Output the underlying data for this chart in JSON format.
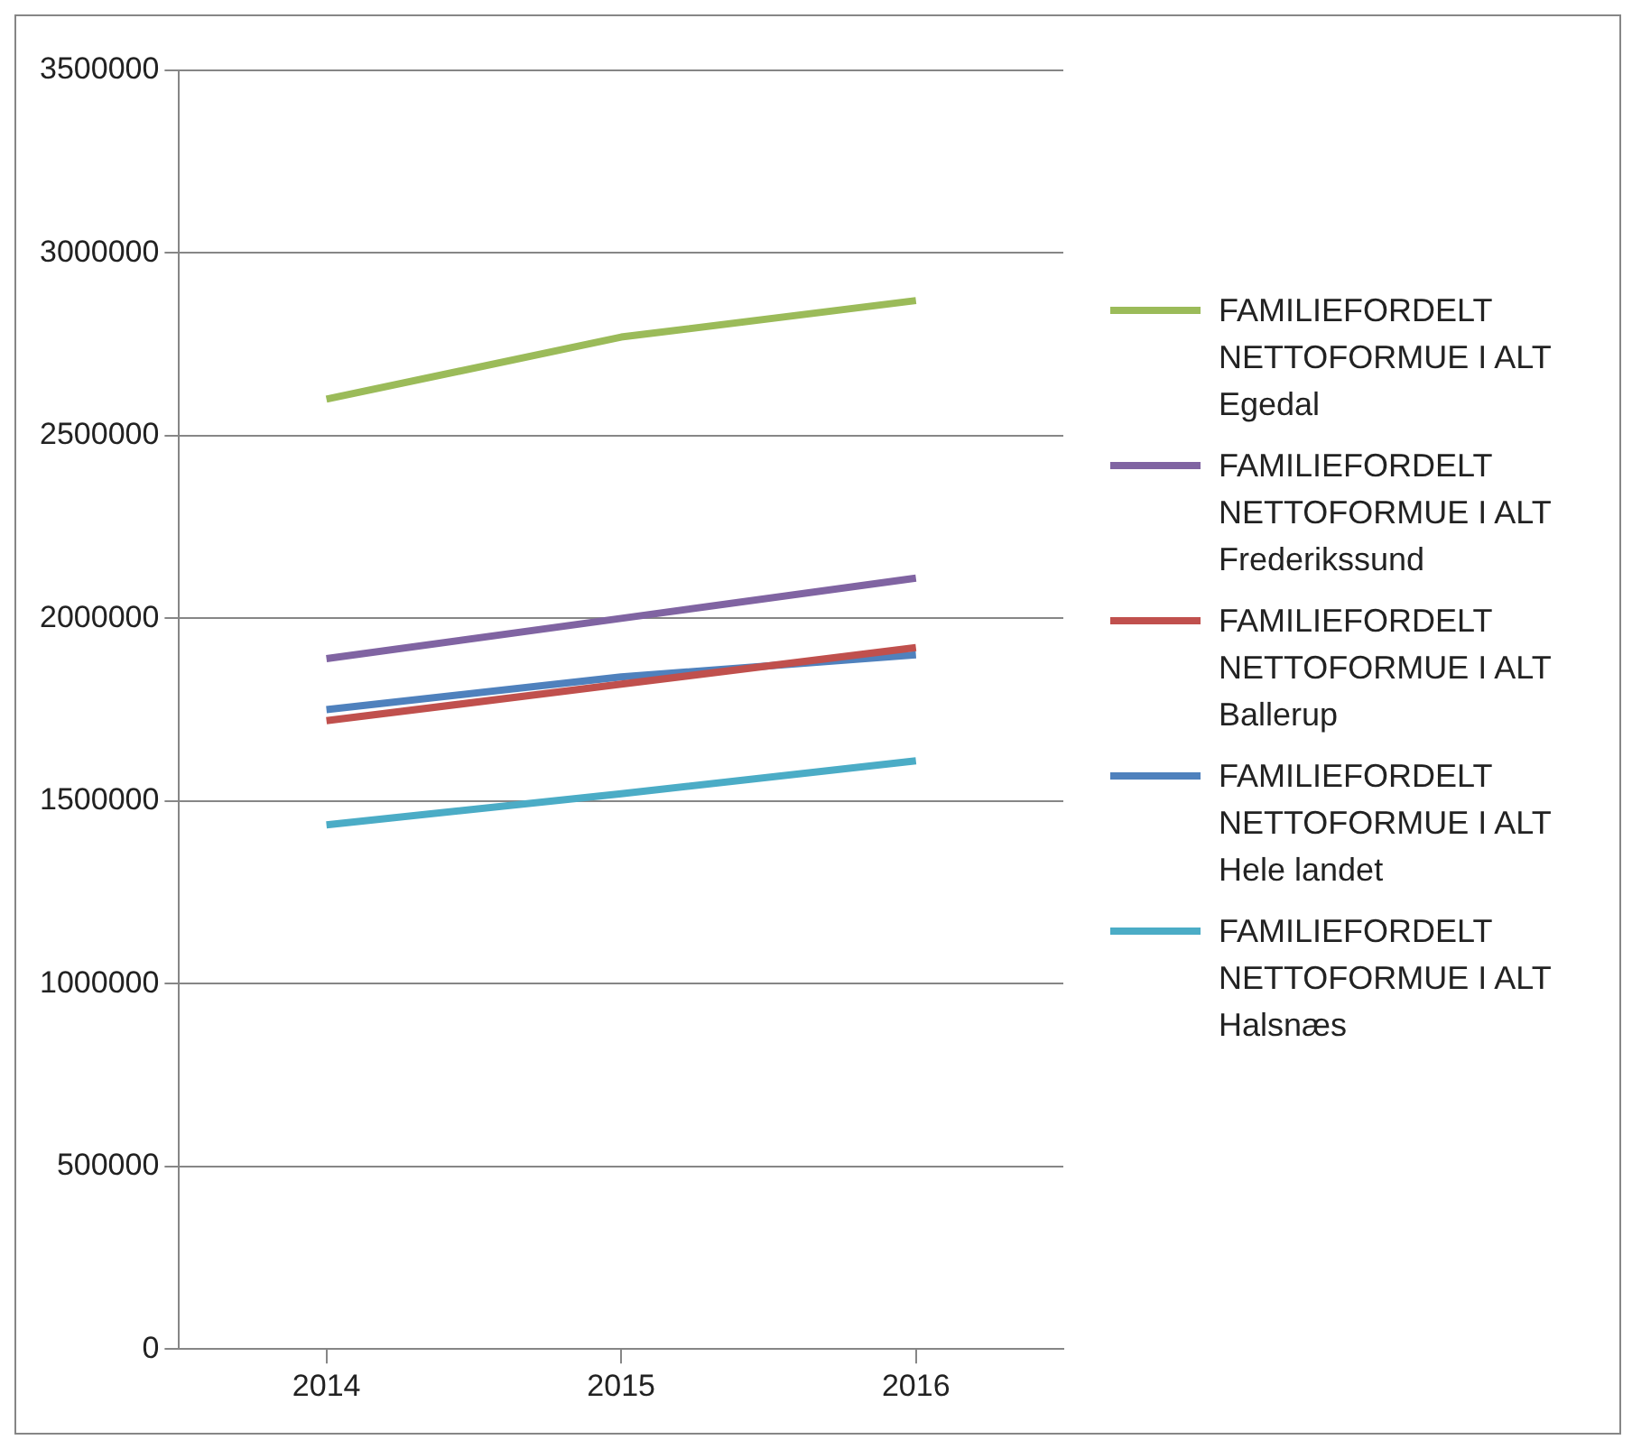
{
  "chart_data": {
    "type": "line",
    "categories": [
      "2014",
      "2015",
      "2016"
    ],
    "series": [
      {
        "name": "FAMILIEFORDELT NETTOFORMUE I ALT Egedal",
        "color": "#9bbb59",
        "values": [
          2600000,
          2770000,
          2870000
        ]
      },
      {
        "name": "FAMILIEFORDELT NETTOFORMUE I ALT Frederikssund",
        "color": "#8064a2",
        "values": [
          1890000,
          2000000,
          2110000
        ]
      },
      {
        "name": "FAMILIEFORDELT NETTOFORMUE I ALT Ballerup",
        "color": "#c0504d",
        "values": [
          1720000,
          1820000,
          1920000
        ]
      },
      {
        "name": "FAMILIEFORDELT NETTOFORMUE I ALT Hele landet",
        "color": "#4f81bd",
        "values": [
          1750000,
          1840000,
          1900000
        ]
      },
      {
        "name": "FAMILIEFORDELT NETTOFORMUE I ALT Halsnæs",
        "color": "#4bacc6",
        "values": [
          1435000,
          1520000,
          1610000
        ]
      }
    ],
    "ylim": [
      0,
      3500000
    ],
    "yticks": [
      0,
      500000,
      1000000,
      1500000,
      2000000,
      2500000,
      3000000,
      3500000
    ],
    "grid": "y",
    "legend": "right",
    "marker": "none",
    "line_style": "solid"
  }
}
